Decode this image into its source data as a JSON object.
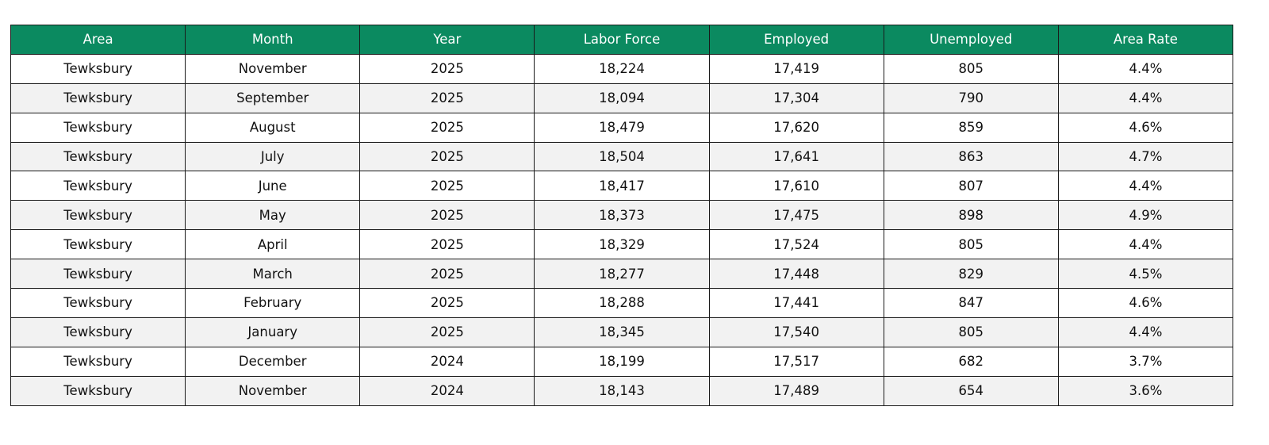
{
  "table": {
    "columns": [
      "Area",
      "Month",
      "Year",
      "Labor Force",
      "Employed",
      "Unemployed",
      "Area Rate"
    ],
    "rows": [
      [
        "Tewksbury",
        "November",
        "2025",
        "18,224",
        "17,419",
        "805",
        "4.4%"
      ],
      [
        "Tewksbury",
        "September",
        "2025",
        "18,094",
        "17,304",
        "790",
        "4.4%"
      ],
      [
        "Tewksbury",
        "August",
        "2025",
        "18,479",
        "17,620",
        "859",
        "4.6%"
      ],
      [
        "Tewksbury",
        "July",
        "2025",
        "18,504",
        "17,641",
        "863",
        "4.7%"
      ],
      [
        "Tewksbury",
        "June",
        "2025",
        "18,417",
        "17,610",
        "807",
        "4.4%"
      ],
      [
        "Tewksbury",
        "May",
        "2025",
        "18,373",
        "17,475",
        "898",
        "4.9%"
      ],
      [
        "Tewksbury",
        "April",
        "2025",
        "18,329",
        "17,524",
        "805",
        "4.4%"
      ],
      [
        "Tewksbury",
        "March",
        "2025",
        "18,277",
        "17,448",
        "829",
        "4.5%"
      ],
      [
        "Tewksbury",
        "February",
        "2025",
        "18,288",
        "17,441",
        "847",
        "4.6%"
      ],
      [
        "Tewksbury",
        "January",
        "2025",
        "18,345",
        "17,540",
        "805",
        "4.4%"
      ],
      [
        "Tewksbury",
        "December",
        "2024",
        "18,199",
        "17,517",
        "682",
        "3.7%"
      ],
      [
        "Tewksbury",
        "November",
        "2024",
        "18,143",
        "17,489",
        "654",
        "3.6%"
      ]
    ]
  }
}
